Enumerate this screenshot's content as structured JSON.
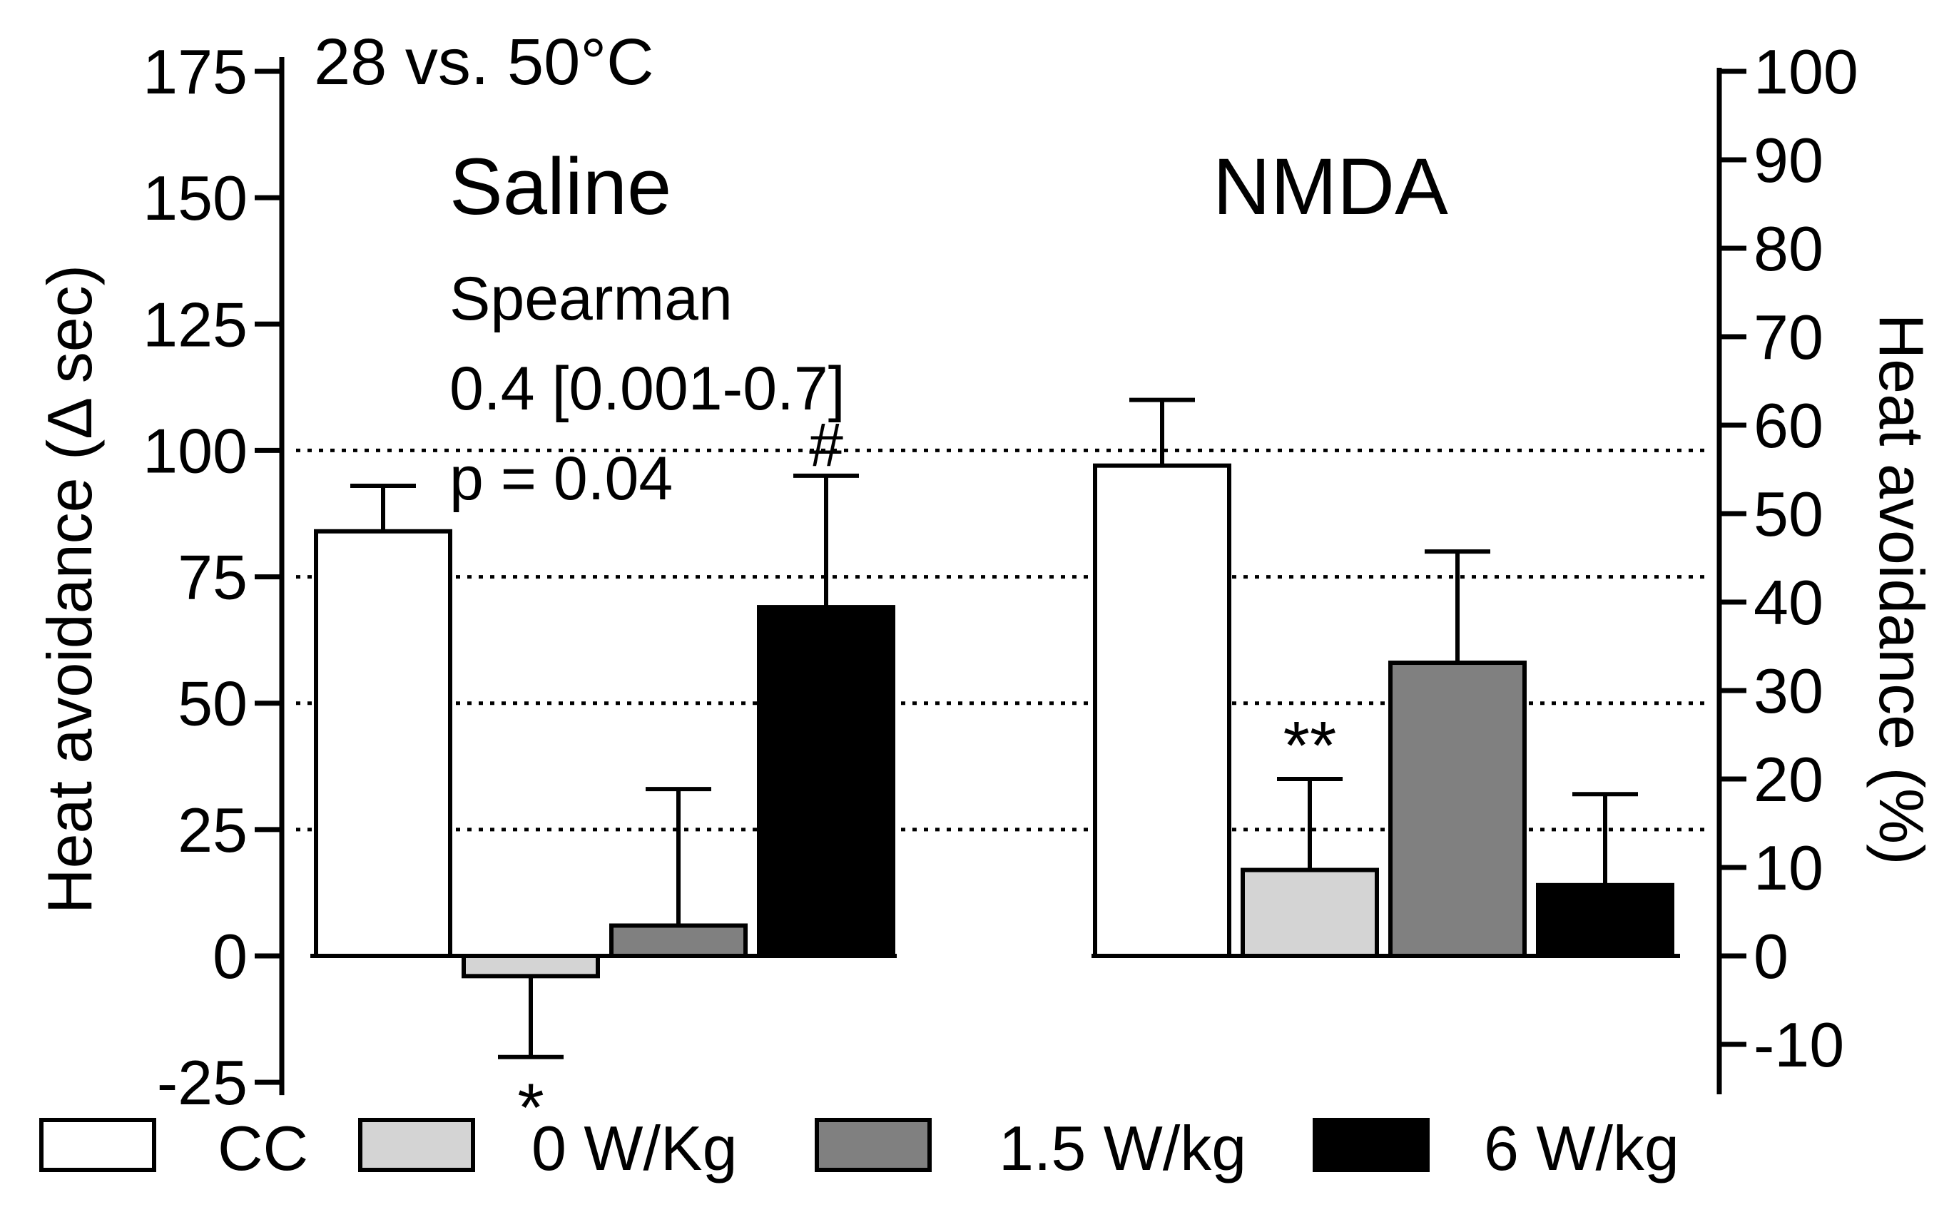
{
  "chart_data": {
    "type": "bar",
    "condition_label": "28 vs. 50°C",
    "ylabel_left": "Heat avoidance (Δ sec)",
    "ylabel_right": "Heat avoidance (%)",
    "ylim_left": [
      -25,
      175
    ],
    "yticks_left": [
      -25,
      0,
      25,
      50,
      75,
      100,
      125,
      150,
      175
    ],
    "yticks_right": [
      -10,
      0,
      10,
      20,
      30,
      40,
      50,
      60,
      70,
      80,
      90,
      100
    ],
    "right_axis_scale": "100% = 175 sec",
    "gridlines_at": [
      25,
      50,
      75,
      100
    ],
    "grid": "dotted",
    "groups": [
      "Saline",
      "NMDA"
    ],
    "series": [
      {
        "name": "CC",
        "color": "#ffffff",
        "values": [
          84,
          97
        ],
        "errors": [
          9,
          13
        ],
        "significance": [
          "",
          ""
        ]
      },
      {
        "name": "0 W/Kg",
        "color": "#d4d4d4",
        "values": [
          -4,
          17
        ],
        "errors": [
          16,
          18
        ],
        "significance": [
          "*",
          "**"
        ]
      },
      {
        "name": "1.5 W/kg",
        "color": "#808080",
        "values": [
          6,
          58
        ],
        "errors": [
          27,
          22
        ],
        "significance": [
          "",
          ""
        ]
      },
      {
        "name": "6 W/kg",
        "color": "#000000",
        "values": [
          69,
          14
        ],
        "errors": [
          26,
          18
        ],
        "significance": [
          "#",
          ""
        ]
      }
    ],
    "annotation": {
      "line1": "Spearman",
      "line2": "0.4 [0.001-0.7]",
      "line3": "p = 0.04"
    },
    "legend_position": "bottom"
  }
}
